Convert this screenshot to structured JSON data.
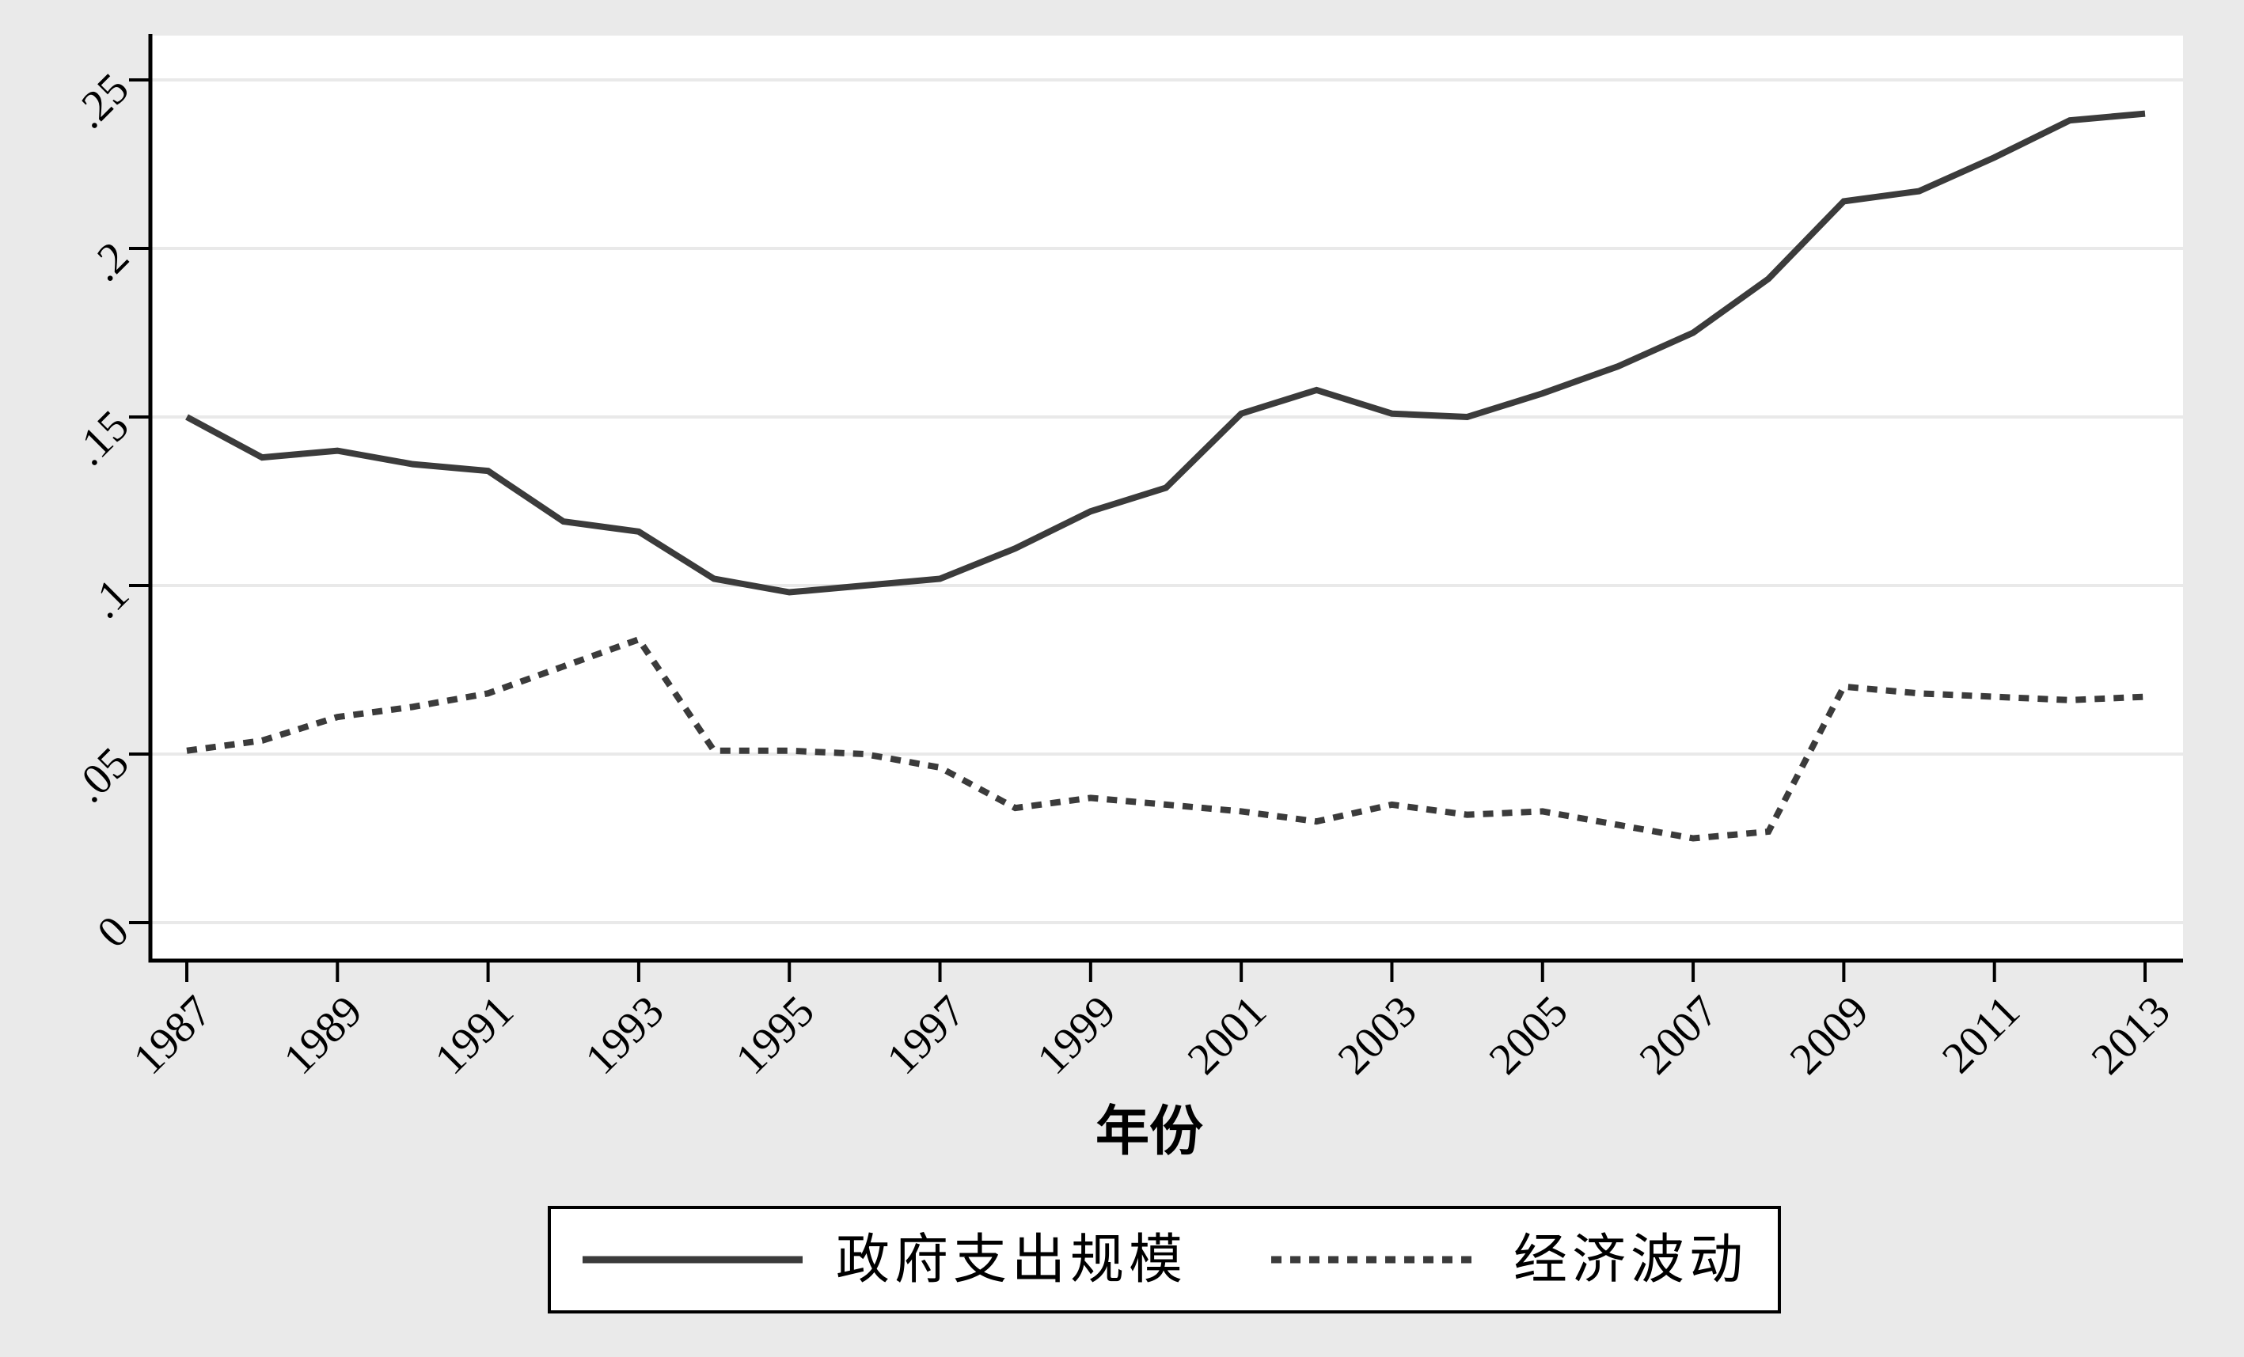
{
  "figure": {
    "background_color": "#eaeaea",
    "plot_background_color": "#ffffff",
    "grid_color": "#e9e9e9",
    "axis_color": "#000000",
    "line_color": "#3b3b3b",
    "x_axis_label": "年份"
  },
  "legend": {
    "items": [
      {
        "label": "政府支出规模",
        "style": "solid"
      },
      {
        "label": "经济波动",
        "style": "dotted"
      }
    ]
  },
  "chart_data": {
    "type": "line",
    "title": "",
    "xlabel": "年份",
    "ylabel": "",
    "xlim": [
      1987,
      2013
    ],
    "ylim": [
      0,
      0.25
    ],
    "grid": true,
    "legend_position": "bottom",
    "x": [
      1987,
      1988,
      1989,
      1990,
      1991,
      1992,
      1993,
      1994,
      1995,
      1996,
      1997,
      1998,
      1999,
      2000,
      2001,
      2002,
      2003,
      2004,
      2005,
      2006,
      2007,
      2008,
      2009,
      2010,
      2011,
      2012,
      2013
    ],
    "series": [
      {
        "name": "政府支出规模",
        "style": "solid",
        "values": [
          0.15,
          0.138,
          0.14,
          0.136,
          0.134,
          0.119,
          0.116,
          0.102,
          0.098,
          0.1,
          0.102,
          0.111,
          0.122,
          0.129,
          0.151,
          0.158,
          0.151,
          0.15,
          0.157,
          0.165,
          0.175,
          0.191,
          0.214,
          0.217,
          0.227,
          0.238,
          0.24
        ]
      },
      {
        "name": "经济波动",
        "style": "dotted",
        "values": [
          0.051,
          0.054,
          0.061,
          0.064,
          0.068,
          0.076,
          0.084,
          0.051,
          0.051,
          0.05,
          0.046,
          0.034,
          0.037,
          0.035,
          0.033,
          0.03,
          0.035,
          0.032,
          0.033,
          0.029,
          0.025,
          0.027,
          0.07,
          0.068,
          0.067,
          0.066,
          0.067
        ]
      }
    ],
    "y_ticks": [
      {
        "value": 0,
        "label": "0"
      },
      {
        "value": 0.05,
        "label": ".05"
      },
      {
        "value": 0.1,
        "label": ".1"
      },
      {
        "value": 0.15,
        "label": ".15"
      },
      {
        "value": 0.2,
        "label": ".2"
      },
      {
        "value": 0.25,
        "label": ".25"
      }
    ],
    "x_ticks": [
      {
        "value": 1987,
        "label": "1987"
      },
      {
        "value": 1989,
        "label": "1989"
      },
      {
        "value": 1991,
        "label": "1991"
      },
      {
        "value": 1993,
        "label": "1993"
      },
      {
        "value": 1995,
        "label": "1995"
      },
      {
        "value": 1997,
        "label": "1997"
      },
      {
        "value": 1999,
        "label": "1999"
      },
      {
        "value": 2001,
        "label": "2001"
      },
      {
        "value": 2003,
        "label": "2003"
      },
      {
        "value": 2005,
        "label": "2005"
      },
      {
        "value": 2007,
        "label": "2007"
      },
      {
        "value": 2009,
        "label": "2009"
      },
      {
        "value": 2011,
        "label": "2011"
      },
      {
        "value": 2013,
        "label": "2013"
      }
    ]
  }
}
